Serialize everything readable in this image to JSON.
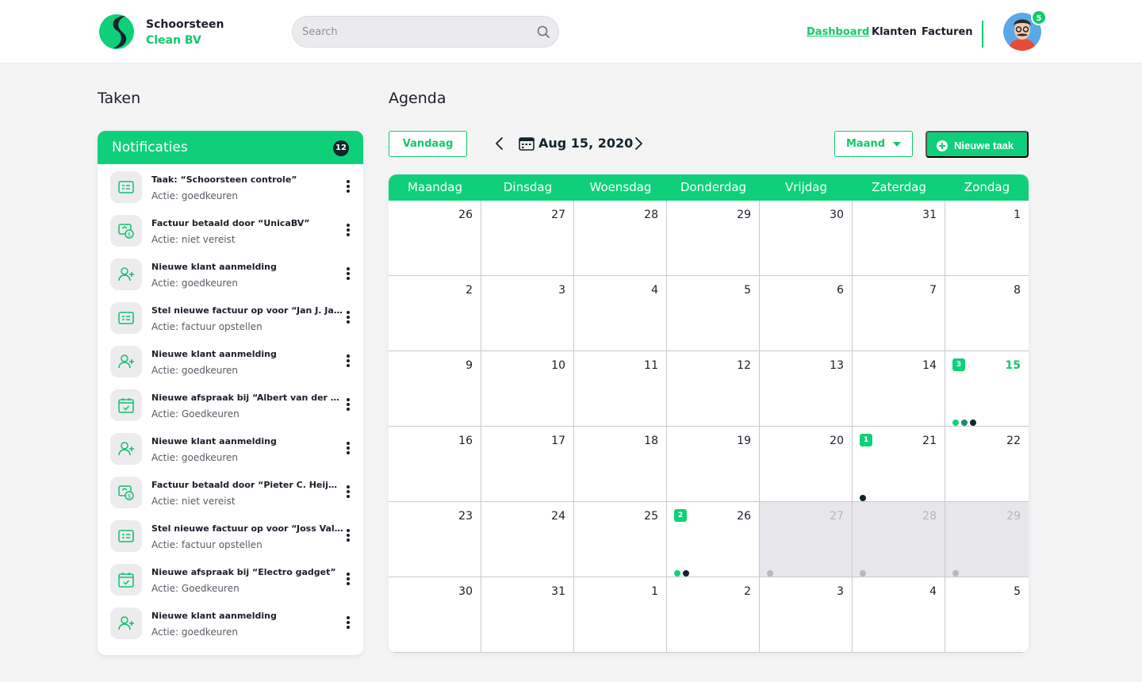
{
  "brand": {
    "line1": "Schoorsteen",
    "line2": "Clean BV"
  },
  "search": {
    "placeholder": "Search"
  },
  "nav": {
    "dashboard": "Dashboard",
    "klanten": "Klanten",
    "facturen": "Facturen"
  },
  "user": {
    "notification_count": "5"
  },
  "taken": {
    "title": "Taken"
  },
  "agenda": {
    "title": "Agenda"
  },
  "notifications": {
    "title": "Notificaties",
    "count": "12",
    "items": [
      {
        "icon": "card",
        "title": "Taak: “Schoorsteen controle”",
        "action": "Actie: goedkeuren"
      },
      {
        "icon": "invoice",
        "title": "Factuur betaald door “UnicaBV”",
        "action": "Actie: niet vereist"
      },
      {
        "icon": "user-add",
        "title": "Nieuwe klant aanmelding",
        "action": "Actie: goedkeuren"
      },
      {
        "icon": "card",
        "title": "Stel nieuwe factuur op voor “Jan J. Jansen”",
        "action": "Actie: factuur opstellen"
      },
      {
        "icon": "user-add",
        "title": "Nieuwe klant aanmelding",
        "action": "Actie: goedkeuren"
      },
      {
        "icon": "calendar-check",
        "title": "Nieuwe afspraak bij “Albert van der heijden”",
        "action": "Actie: Goedkeuren"
      },
      {
        "icon": "user-add",
        "title": "Nieuwe klant aanmelding",
        "action": "Actie: goedkeuren"
      },
      {
        "icon": "invoice",
        "title": "Factuur betaald door “Pieter C. Heijmans”",
        "action": "Actie: niet vereist"
      },
      {
        "icon": "card",
        "title": "Stel nieuwe factuur op voor “Joss Valkenburg”",
        "action": "Actie: factuur opstellen"
      },
      {
        "icon": "calendar-check",
        "title": "Nieuwe afspraak bij “Electro gadget”",
        "action": "Actie: Goedkeuren"
      },
      {
        "icon": "user-add",
        "title": "Nieuwe klant aanmelding",
        "action": "Actie: goedkeuren"
      }
    ]
  },
  "toolbar": {
    "today_label": "Vandaag",
    "current_date": "Aug 15, 2020",
    "view_label": "Maand",
    "new_task_label": "Nieuwe taak"
  },
  "calendar": {
    "day_names": [
      "Maandag",
      "Dinsdag",
      "Woensdag",
      "Donderdag",
      "Vrijdag",
      "Zaterdag",
      "Zondag"
    ],
    "colors": {
      "accent": "#0fd07a",
      "dark": "#12252a",
      "mid": "#1a8a6a",
      "grey": "#b8b8be"
    },
    "weeks": [
      [
        {
          "d": "26"
        },
        {
          "d": "27"
        },
        {
          "d": "28"
        },
        {
          "d": "29"
        },
        {
          "d": "30"
        },
        {
          "d": "31"
        },
        {
          "d": "1"
        }
      ],
      [
        {
          "d": "2"
        },
        {
          "d": "3"
        },
        {
          "d": "4"
        },
        {
          "d": "5"
        },
        {
          "d": "6"
        },
        {
          "d": "7"
        },
        {
          "d": "8"
        }
      ],
      [
        {
          "d": "9"
        },
        {
          "d": "10"
        },
        {
          "d": "11"
        },
        {
          "d": "12"
        },
        {
          "d": "13"
        },
        {
          "d": "14"
        },
        {
          "d": "15",
          "today": true,
          "badge": "3",
          "dots": [
            "accent",
            "mid",
            "dark"
          ]
        }
      ],
      [
        {
          "d": "16"
        },
        {
          "d": "17"
        },
        {
          "d": "18"
        },
        {
          "d": "19"
        },
        {
          "d": "20"
        },
        {
          "d": "21",
          "badge": "1",
          "dots": [
            "dark"
          ]
        },
        {
          "d": "22"
        }
      ],
      [
        {
          "d": "23"
        },
        {
          "d": "24"
        },
        {
          "d": "25"
        },
        {
          "d": "26",
          "badge": "2",
          "dots": [
            "accent",
            "dark"
          ]
        },
        {
          "d": "27",
          "disabled": true,
          "dots": [
            "grey"
          ]
        },
        {
          "d": "28",
          "disabled": true,
          "dots": [
            "grey"
          ]
        },
        {
          "d": "29",
          "disabled": true,
          "dots": [
            "grey"
          ]
        }
      ],
      [
        {
          "d": "30"
        },
        {
          "d": "31"
        },
        {
          "d": "1"
        },
        {
          "d": "2"
        },
        {
          "d": "3"
        },
        {
          "d": "4"
        },
        {
          "d": "5"
        }
      ]
    ]
  }
}
